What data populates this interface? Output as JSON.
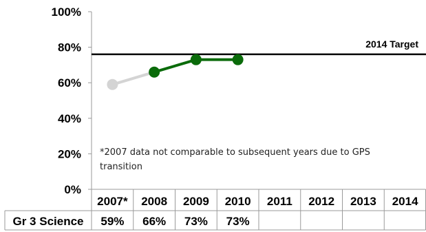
{
  "chart_data": {
    "type": "line",
    "categories": [
      "2007*",
      "2008",
      "2009",
      "2010",
      "2011",
      "2012",
      "2013",
      "2014"
    ],
    "ylim": [
      0,
      100
    ],
    "yticks": [
      0,
      20,
      40,
      60,
      80,
      100
    ],
    "ytick_labels": [
      "0%",
      "20%",
      "40%",
      "60%",
      "80%",
      "100%"
    ],
    "series": [
      {
        "name": "Gr 3 Science",
        "values": [
          59,
          66,
          73,
          73,
          null,
          null,
          null,
          null
        ],
        "value_labels": [
          "59%",
          "66%",
          "73%",
          "73%",
          "",
          "",
          "",
          ""
        ],
        "color": "#0a6b0a",
        "not_comparable_color": "#d4d4d4",
        "not_comparable_index": 0
      }
    ],
    "target": {
      "label": "2014 Target",
      "value": 76
    },
    "annotation_lines": [
      "*2007 data not comparable to  subsequent years due to GPS",
      "transition"
    ]
  }
}
